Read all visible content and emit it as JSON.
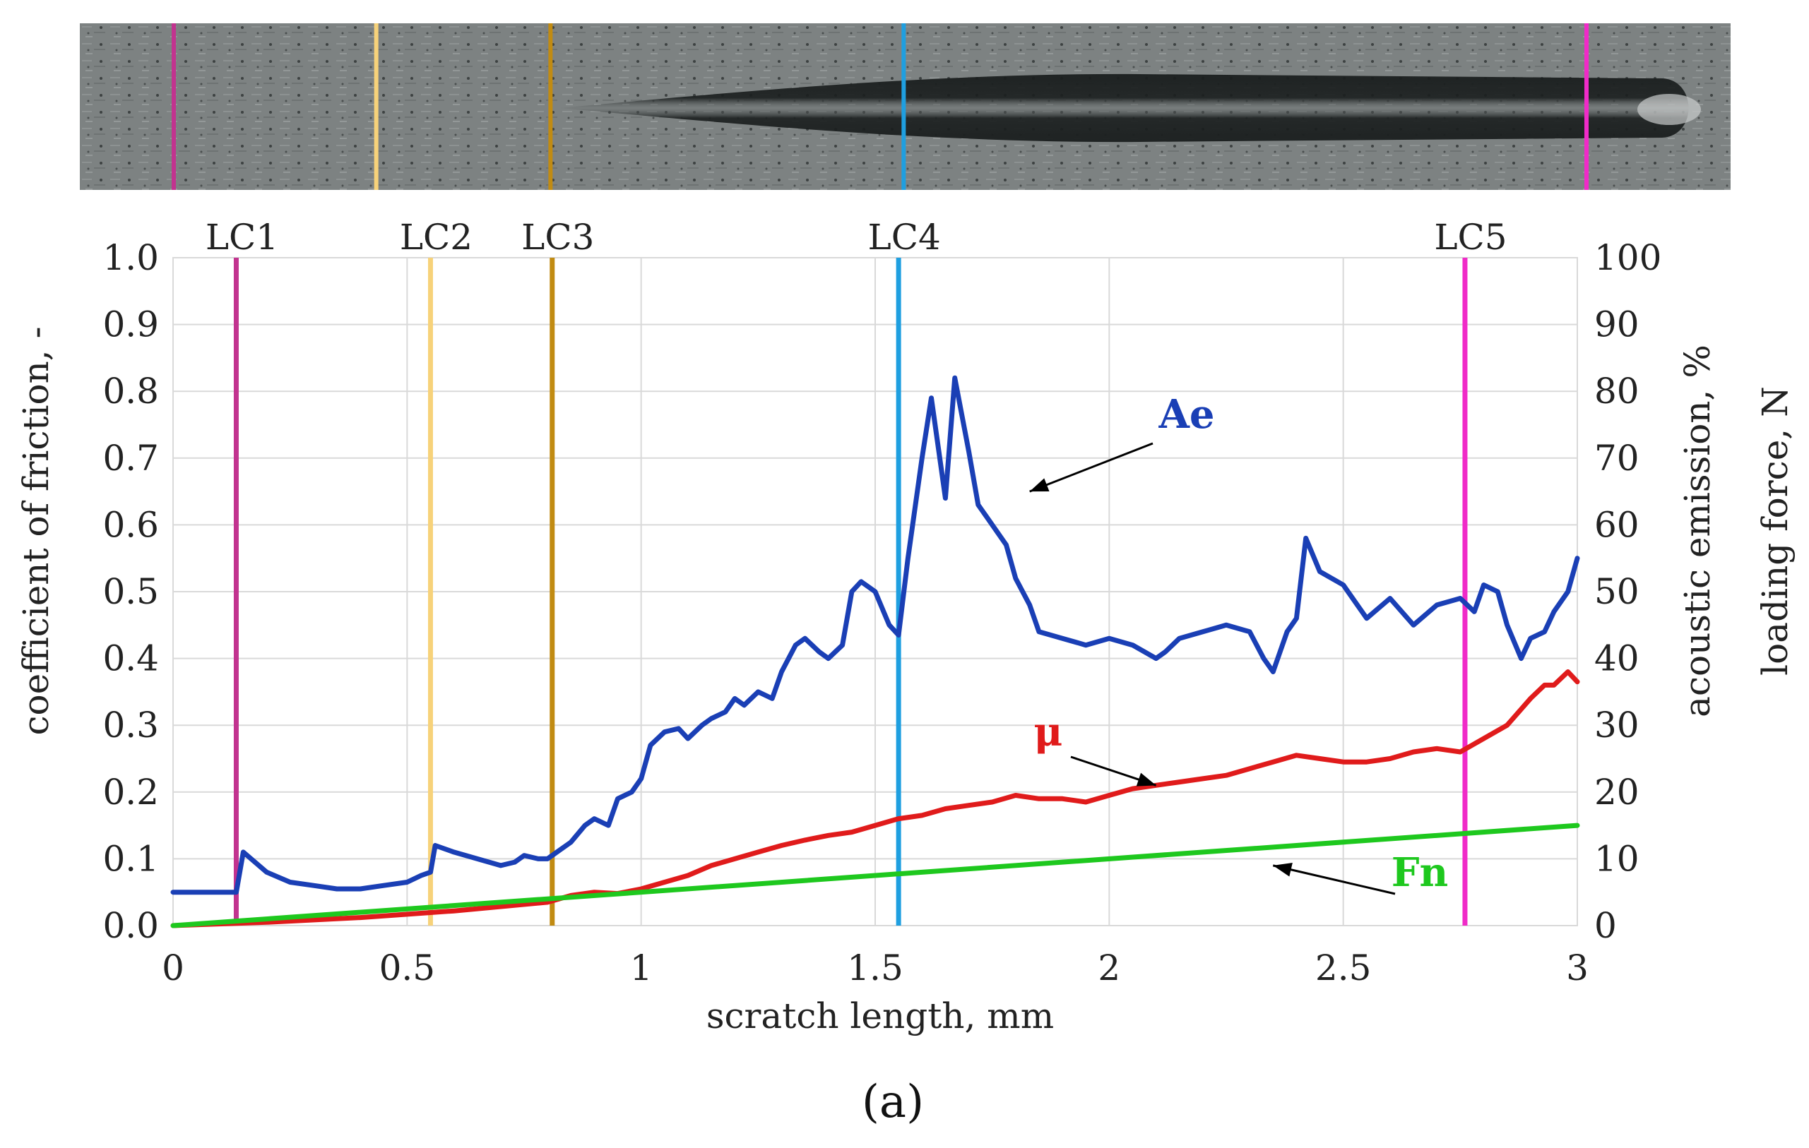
{
  "chart_data": {
    "type": "line",
    "caption": "(a)",
    "x": {
      "label": "scratch length, mm",
      "lim": [
        0,
        3
      ],
      "ticks": [
        0,
        0.5,
        1,
        1.5,
        2,
        2.5,
        3
      ],
      "tick_labels": [
        "0",
        "0.5",
        "1",
        "1.5",
        "2",
        "2.5",
        "3"
      ]
    },
    "y_left": {
      "label": "coefficient of friction, -",
      "lim": [
        0,
        1
      ],
      "ticks": [
        0,
        0.1,
        0.2,
        0.3,
        0.4,
        0.5,
        0.6,
        0.7,
        0.8,
        0.9,
        1.0
      ],
      "tick_labels": [
        "0.0",
        "0.1",
        "0.2",
        "0.3",
        "0.4",
        "0.5",
        "0.6",
        "0.7",
        "0.8",
        "0.9",
        "1.0"
      ]
    },
    "y_right": {
      "label_line1": "acoustic emission, %",
      "label_line2": "loading force, N",
      "lim": [
        0,
        100
      ],
      "ticks": [
        0,
        10,
        20,
        30,
        40,
        50,
        60,
        70,
        80,
        90,
        100
      ],
      "tick_labels": [
        "0",
        "10",
        "20",
        "30",
        "40",
        "50",
        "60",
        "70",
        "80",
        "90",
        "100"
      ]
    },
    "grid": true,
    "series": [
      {
        "name": "Ae",
        "axis": "right",
        "color": "#1a3fb5",
        "x": [
          0,
          0.13,
          0.135,
          0.15,
          0.2,
          0.25,
          0.3,
          0.35,
          0.4,
          0.45,
          0.5,
          0.53,
          0.55,
          0.56,
          0.6,
          0.65,
          0.7,
          0.73,
          0.75,
          0.78,
          0.8,
          0.82,
          0.85,
          0.88,
          0.9,
          0.93,
          0.95,
          0.98,
          1.0,
          1.02,
          1.05,
          1.08,
          1.1,
          1.13,
          1.15,
          1.18,
          1.2,
          1.22,
          1.25,
          1.28,
          1.3,
          1.33,
          1.35,
          1.38,
          1.4,
          1.43,
          1.45,
          1.47,
          1.5,
          1.53,
          1.55,
          1.57,
          1.6,
          1.62,
          1.65,
          1.67,
          1.7,
          1.72,
          1.75,
          1.78,
          1.8,
          1.83,
          1.85,
          1.9,
          1.95,
          2.0,
          2.05,
          2.1,
          2.12,
          2.15,
          2.2,
          2.25,
          2.3,
          2.33,
          2.35,
          2.38,
          2.4,
          2.42,
          2.45,
          2.5,
          2.55,
          2.6,
          2.65,
          2.7,
          2.75,
          2.78,
          2.8,
          2.83,
          2.85,
          2.88,
          2.9,
          2.93,
          2.95,
          2.98,
          3.0
        ],
        "values": [
          5,
          5,
          5,
          11,
          8,
          6.5,
          6,
          5.5,
          5.5,
          6,
          6.5,
          7.5,
          8,
          12,
          11,
          10,
          9,
          9.5,
          10.5,
          10,
          10,
          11,
          12.5,
          15,
          16,
          15,
          19,
          20,
          22,
          27,
          29,
          29.5,
          28,
          30,
          31,
          32,
          34,
          33,
          35,
          34,
          38,
          42,
          43,
          41,
          40,
          42,
          50,
          51.5,
          50,
          45,
          43.5,
          55,
          70,
          79,
          64,
          82,
          71,
          63,
          60,
          57,
          52,
          48,
          44,
          43,
          42,
          43,
          42,
          40,
          41,
          43,
          44,
          45,
          44,
          40,
          38,
          44,
          46,
          58,
          53,
          51,
          46,
          49,
          45,
          48,
          49,
          47,
          51,
          50,
          45,
          40,
          43,
          44,
          47,
          50,
          55
        ]
      },
      {
        "name": "μ",
        "axis": "left",
        "color": "#e01b1b",
        "x": [
          0,
          0.2,
          0.4,
          0.6,
          0.8,
          0.85,
          0.9,
          0.95,
          1.0,
          1.05,
          1.1,
          1.15,
          1.2,
          1.25,
          1.3,
          1.35,
          1.4,
          1.45,
          1.5,
          1.55,
          1.6,
          1.65,
          1.7,
          1.75,
          1.8,
          1.85,
          1.9,
          1.95,
          2.0,
          2.05,
          2.1,
          2.15,
          2.2,
          2.25,
          2.3,
          2.35,
          2.4,
          2.45,
          2.5,
          2.55,
          2.6,
          2.65,
          2.7,
          2.75,
          2.8,
          2.85,
          2.9,
          2.93,
          2.95,
          2.98,
          3.0
        ],
        "values": [
          0,
          0.005,
          0.012,
          0.022,
          0.035,
          0.045,
          0.05,
          0.048,
          0.055,
          0.065,
          0.075,
          0.09,
          0.1,
          0.11,
          0.12,
          0.128,
          0.135,
          0.14,
          0.15,
          0.16,
          0.165,
          0.175,
          0.18,
          0.185,
          0.195,
          0.19,
          0.19,
          0.185,
          0.195,
          0.205,
          0.21,
          0.215,
          0.22,
          0.225,
          0.235,
          0.245,
          0.255,
          0.25,
          0.245,
          0.245,
          0.25,
          0.26,
          0.265,
          0.26,
          0.28,
          0.3,
          0.34,
          0.36,
          0.36,
          0.38,
          0.365
        ]
      },
      {
        "name": "Fn",
        "axis": "right",
        "color": "#1ec81e",
        "x": [
          0,
          3
        ],
        "values": [
          0,
          15
        ]
      }
    ],
    "critical_loads": [
      {
        "label": "LC1",
        "x": 0.135,
        "color": "#c2338f"
      },
      {
        "label": "LC2",
        "x": 0.55,
        "color": "#f7d27a"
      },
      {
        "label": "LC3",
        "x": 0.81,
        "color": "#c18b12"
      },
      {
        "label": "LC4",
        "x": 1.55,
        "color": "#1f9fe0"
      },
      {
        "label": "LC5",
        "x": 2.76,
        "color": "#f02bc8"
      }
    ],
    "annotations": [
      {
        "text": "Ae",
        "series": "Ae",
        "arrow_to_x": 1.83,
        "arrow_to_y": 65
      },
      {
        "text": "μ",
        "series": "μ",
        "arrow_to_x": 2.1,
        "arrow_to_y": 0.21
      },
      {
        "text": "Fn",
        "series": "Fn",
        "arrow_to_x": 2.35,
        "arrow_to_y": 9
      }
    ]
  }
}
